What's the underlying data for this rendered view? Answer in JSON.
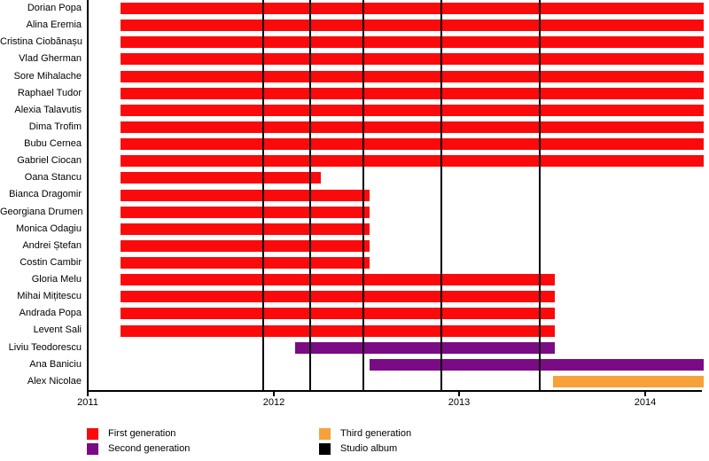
{
  "chart_data": {
    "type": "bar",
    "subtype": "horizontal-gantt-timeline",
    "x_ticks": [
      2011,
      2012,
      2013,
      2014
    ],
    "x_range": [
      2011,
      2014.31
    ],
    "grid": false,
    "legend_position": "bottom",
    "members": [
      {
        "name": "Dorian Popa",
        "generation": "first",
        "start": 2011.17,
        "end": 2014.31
      },
      {
        "name": "Alina Eremia",
        "generation": "first",
        "start": 2011.17,
        "end": 2014.31
      },
      {
        "name": "Cristina Ciobănașu",
        "generation": "first",
        "start": 2011.17,
        "end": 2014.31
      },
      {
        "name": "Vlad Gherman",
        "generation": "first",
        "start": 2011.17,
        "end": 2014.31
      },
      {
        "name": "Sore Mihalache",
        "generation": "first",
        "start": 2011.17,
        "end": 2014.31
      },
      {
        "name": "Raphael Tudor",
        "generation": "first",
        "start": 2011.17,
        "end": 2014.31
      },
      {
        "name": "Alexia Talavutis",
        "generation": "first",
        "start": 2011.17,
        "end": 2014.31
      },
      {
        "name": "Dima Trofim",
        "generation": "first",
        "start": 2011.17,
        "end": 2014.31
      },
      {
        "name": "Bubu Cernea",
        "generation": "first",
        "start": 2011.17,
        "end": 2014.31
      },
      {
        "name": "Gabriel Ciocan",
        "generation": "first",
        "start": 2011.17,
        "end": 2014.31
      },
      {
        "name": "Oana Stancu",
        "generation": "first",
        "start": 2011.17,
        "end": 2012.25
      },
      {
        "name": "Bianca Dragomir",
        "generation": "first",
        "start": 2011.17,
        "end": 2012.51
      },
      {
        "name": "Georgiana Drumen",
        "generation": "first",
        "start": 2011.17,
        "end": 2012.51
      },
      {
        "name": "Monica Odagiu",
        "generation": "first",
        "start": 2011.17,
        "end": 2012.51
      },
      {
        "name": "Andrei Ștefan",
        "generation": "first",
        "start": 2011.17,
        "end": 2012.51
      },
      {
        "name": "Costin Cambir",
        "generation": "first",
        "start": 2011.17,
        "end": 2012.51
      },
      {
        "name": "Gloria Melu",
        "generation": "first",
        "start": 2011.17,
        "end": 2013.51
      },
      {
        "name": "Mihai Mițitescu",
        "generation": "first",
        "start": 2011.17,
        "end": 2013.51
      },
      {
        "name": "Andrada Popa",
        "generation": "first",
        "start": 2011.17,
        "end": 2013.51
      },
      {
        "name": "Levent Sali",
        "generation": "first",
        "start": 2011.17,
        "end": 2013.51
      },
      {
        "name": "Liviu Teodorescu",
        "generation": "second",
        "start": 2012.11,
        "end": 2013.51
      },
      {
        "name": "Ana Baniciu",
        "generation": "second",
        "start": 2012.51,
        "end": 2014.31
      },
      {
        "name": "Alex Nicolae",
        "generation": "third",
        "start": 2013.5,
        "end": 2014.31
      }
    ],
    "studio_albums": [
      2011.94,
      2012.19,
      2012.48,
      2012.9,
      2013.43
    ],
    "colors": {
      "first": "#fa0a0a",
      "second": "#7b0a85",
      "third": "#f7a13a",
      "studio_album": "#000000"
    },
    "legend": [
      {
        "label": "First generation",
        "key": "first"
      },
      {
        "label": "Second generation",
        "key": "second"
      },
      {
        "label": "Third generation",
        "key": "third"
      },
      {
        "label": "Studio album",
        "key": "studio_album"
      }
    ]
  }
}
